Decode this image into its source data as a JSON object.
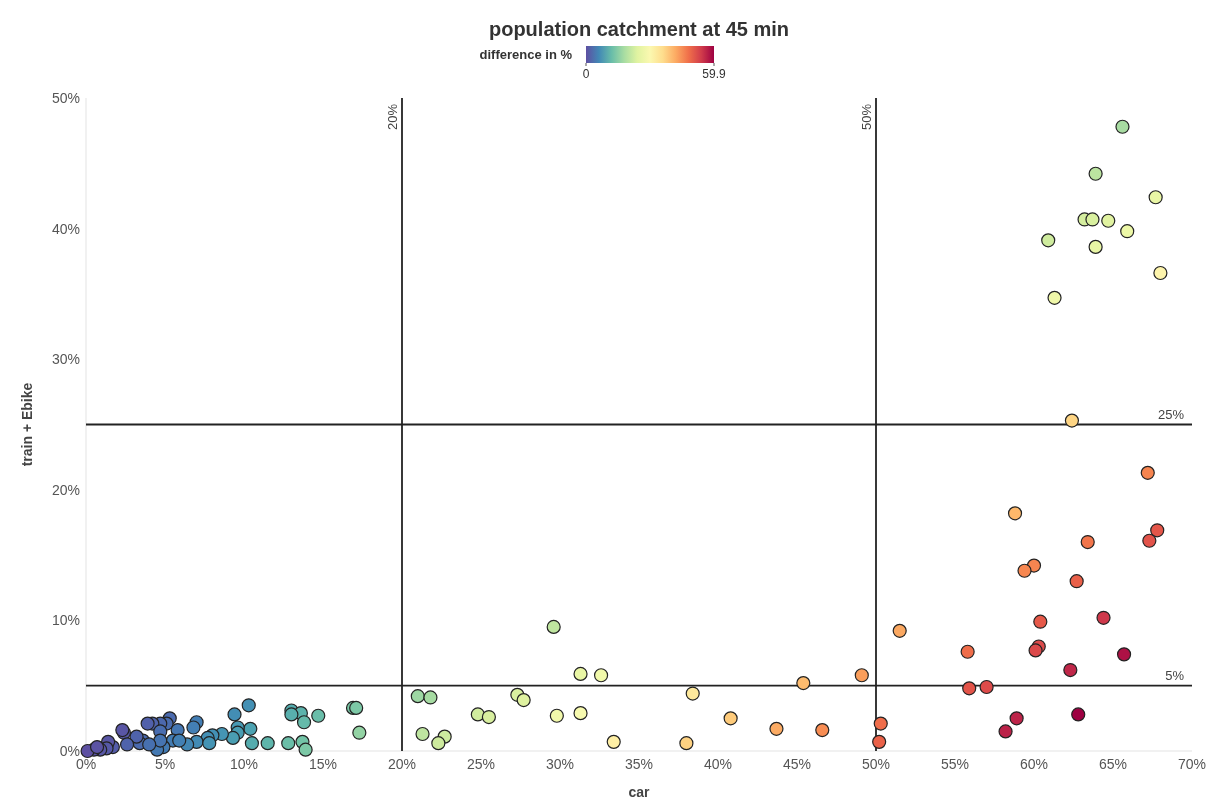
{
  "chart_data": {
    "type": "scatter",
    "title": "population catchment at 45 min",
    "xlabel": "car",
    "ylabel": "train + Ebike",
    "clabel": "difference in %",
    "clim": [
      0,
      59.9
    ],
    "cticks": [
      0,
      59.9
    ],
    "legend": "top",
    "marker": "circle",
    "grid": false,
    "xlim": [
      0,
      70
    ],
    "xticks": [
      {
        "value": 0,
        "label": "0%"
      },
      {
        "value": 5,
        "label": "5%"
      },
      {
        "value": 10,
        "label": "10%"
      },
      {
        "value": 15,
        "label": "15%"
      },
      {
        "value": 20,
        "label": "20%"
      },
      {
        "value": 25,
        "label": "25%"
      },
      {
        "value": 30,
        "label": "30%"
      },
      {
        "value": 35,
        "label": "35%"
      },
      {
        "value": 40,
        "label": "40%"
      },
      {
        "value": 45,
        "label": "45%"
      },
      {
        "value": 50,
        "label": "50%"
      },
      {
        "value": 55,
        "label": "55%"
      },
      {
        "value": 60,
        "label": "60%"
      },
      {
        "value": 65,
        "label": "65%"
      },
      {
        "value": 70,
        "label": "70%"
      }
    ],
    "ylim": [
      0,
      50
    ],
    "yticks": [
      {
        "value": 0,
        "label": "0%"
      },
      {
        "value": 10,
        "label": "10%"
      },
      {
        "value": 20,
        "label": "20%"
      },
      {
        "value": 30,
        "label": "30%"
      },
      {
        "value": 40,
        "label": "40%"
      },
      {
        "value": 50,
        "label": "50%"
      }
    ],
    "ref_lines": [
      {
        "axis": "x",
        "value": 20,
        "label": "20%",
        "color": "#222222"
      },
      {
        "axis": "x",
        "value": 50,
        "label": "50%",
        "color": "#222222"
      },
      {
        "axis": "y",
        "value": 25,
        "label": "25%",
        "color": "#222222"
      },
      {
        "axis": "y",
        "value": 5,
        "label": "5%",
        "color": "#222222"
      }
    ],
    "x": [
      65.6,
      63.9,
      67.7,
      63.2,
      63.7,
      64.7,
      65.9,
      60.9,
      63.9,
      68.0,
      61.3,
      62.4,
      67.2,
      58.8,
      67.8,
      67.3,
      63.4,
      60.0,
      59.4,
      62.7,
      64.4,
      60.4,
      51.5,
      65.7,
      55.8,
      60.3,
      60.1,
      62.3,
      49.1,
      55.9,
      57.0,
      62.8,
      58.9,
      58.2,
      50.3,
      50.2,
      29.6,
      31.3,
      32.6,
      45.4,
      21.0,
      21.8,
      27.3,
      27.7,
      38.4,
      24.8,
      25.5,
      29.8,
      31.3,
      40.8,
      21.3,
      22.7,
      22.3,
      43.7,
      46.6,
      33.4,
      38.0,
      10.3,
      13.0,
      13.6,
      13.0,
      14.7,
      13.8,
      16.9,
      17.1,
      17.3,
      9.4,
      10.4,
      9.6,
      9.6,
      9.3,
      10.5,
      11.5,
      12.8,
      13.7,
      13.9,
      8.6,
      8.0,
      7.7,
      7.0,
      6.8,
      7.0,
      6.4,
      5.3,
      5.1,
      4.7,
      4.2,
      3.9,
      5.8,
      4.7,
      5.5,
      4.9,
      4.5,
      3.6,
      3.4,
      3.2,
      2.4,
      2.3,
      2.6,
      1.7,
      1.4,
      1.3,
      0.9,
      0.5,
      0.1,
      0.7,
      4.7,
      4.0,
      5.9,
      7.8
    ],
    "values": [
      47.8,
      44.2,
      42.4,
      40.7,
      40.7,
      40.6,
      39.8,
      39.1,
      38.6,
      36.6,
      34.7,
      25.3,
      21.3,
      18.2,
      16.9,
      16.1,
      16.0,
      14.2,
      13.8,
      13.0,
      10.2,
      9.9,
      9.2,
      7.4,
      7.6,
      8.0,
      7.7,
      6.2,
      5.8,
      4.8,
      4.9,
      2.8,
      2.5,
      1.5,
      2.1,
      0.7,
      9.5,
      5.9,
      5.8,
      5.2,
      4.2,
      4.1,
      4.3,
      3.9,
      4.4,
      2.8,
      2.6,
      2.7,
      2.9,
      2.5,
      1.3,
      1.1,
      0.6,
      1.7,
      1.6,
      0.7,
      0.6,
      3.5,
      3.1,
      2.9,
      2.8,
      2.7,
      2.2,
      3.3,
      3.3,
      1.4,
      2.8,
      1.7,
      1.8,
      1.4,
      1.0,
      0.6,
      0.6,
      0.6,
      0.7,
      0.1,
      1.3,
      1.2,
      1.0,
      2.2,
      1.8,
      0.7,
      0.5,
      2.5,
      2.1,
      2.1,
      2.1,
      2.1,
      1.6,
      1.5,
      0.8,
      0.3,
      0.1,
      0.8,
      0.6,
      1.1,
      1.4,
      1.6,
      0.5,
      0.3,
      0.7,
      0.2,
      0.1,
      0.1,
      0.0,
      0.3,
      0.8,
      0.5,
      0.8,
      0.6
    ],
    "cvalues": [
      17.8,
      19.7,
      25.3,
      22.5,
      23.0,
      24.1,
      26.1,
      21.8,
      25.3,
      31.4,
      26.6,
      37.1,
      45.9,
      40.6,
      50.9,
      51.2,
      47.4,
      45.8,
      45.6,
      49.7,
      54.2,
      50.5,
      42.3,
      58.3,
      48.2,
      52.3,
      52.4,
      56.1,
      43.3,
      51.1,
      52.1,
      59.9,
      56.4,
      56.7,
      48.2,
      49.5,
      20.1,
      25.4,
      26.8,
      40.2,
      16.8,
      17.7,
      23.0,
      23.8,
      34.0,
      22.0,
      22.9,
      27.1,
      28.4,
      38.3,
      20.0,
      21.6,
      21.7,
      42.0,
      45.0,
      32.7,
      37.4,
      6.8,
      9.9,
      10.7,
      10.2,
      12.0,
      11.6,
      13.6,
      13.8,
      15.9,
      6.6,
      8.7,
      7.8,
      8.2,
      8.3,
      9.9,
      10.9,
      12.2,
      13.0,
      13.8,
      7.3,
      6.8,
      6.7,
      4.8,
      5.0,
      6.3,
      5.9,
      2.8,
      3.0,
      2.6,
      2.1,
      1.8,
      4.2,
      3.2,
      4.7,
      4.6,
      4.4,
      2.8,
      2.8,
      2.1,
      1.0,
      0.7,
      2.1,
      1.4,
      0.7,
      1.1,
      0.8,
      0.4,
      0.1,
      0.4,
      3.9,
      3.5,
      5.1,
      7.2
    ]
  }
}
